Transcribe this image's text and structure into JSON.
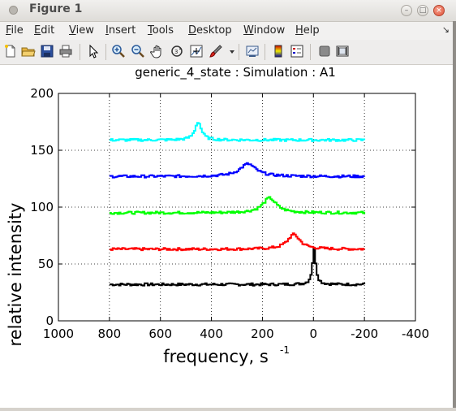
{
  "window": {
    "title": "Figure 1",
    "controls": [
      "minimize",
      "maximize",
      "close"
    ]
  },
  "menu": [
    {
      "label": "File",
      "mnemonic": "F",
      "rest": "ile"
    },
    {
      "label": "Edit",
      "mnemonic": "E",
      "rest": "dit"
    },
    {
      "label": "View",
      "mnemonic": "V",
      "rest": "iew"
    },
    {
      "label": "Insert",
      "mnemonic": "I",
      "rest": "nsert"
    },
    {
      "label": "Tools",
      "mnemonic": "T",
      "rest": "ools"
    },
    {
      "label": "Desktop",
      "mnemonic": "D",
      "rest": "esktop"
    },
    {
      "label": "Window",
      "mnemonic": "W",
      "rest": "indow"
    },
    {
      "label": "Help",
      "mnemonic": "H",
      "rest": "elp"
    }
  ],
  "toolbar": {
    "buttons": [
      "new-figure-icon",
      "open-file-icon",
      "save-icon",
      "print-icon",
      "pointer-icon",
      "zoom-in-icon",
      "zoom-out-icon",
      "pan-icon",
      "rotate-icon",
      "data-cursor-icon",
      "brush-icon",
      "dropdown-arrow-icon",
      "link-plot-icon",
      "colorbar-icon",
      "legend-icon",
      "hide-plot-tools-icon",
      "show-plot-tools-icon"
    ]
  },
  "chart_data": {
    "type": "line",
    "title": "generic_4_state : Simulation : A1",
    "xlabel": "frequency, s",
    "xlabel_superscript": "-1",
    "ylabel": "relative intensity",
    "xlim": [
      1000,
      -400
    ],
    "x_reversed": true,
    "ylim": [
      0,
      200
    ],
    "xticks": [
      1000,
      800,
      600,
      400,
      200,
      0,
      -200,
      -400
    ],
    "xtick_labels": [
      "1000",
      "800",
      "600",
      "400",
      "200",
      "0",
      "-200",
      "-400"
    ],
    "yticks": [
      0,
      50,
      100,
      150,
      200
    ],
    "ytick_labels": [
      "0",
      "50",
      "100",
      "150",
      "200"
    ],
    "grid": true,
    "grid_style": "dotted",
    "legend": "none",
    "series": [
      {
        "color": "#000000",
        "baseline": 32,
        "peak_x": 0,
        "peak_height": 31,
        "peak_width": 8,
        "x": [
          800,
          600,
          400,
          200,
          100,
          40,
          10,
          0,
          -10,
          -40,
          -100,
          -200
        ],
        "values": [
          32,
          31,
          32,
          33,
          33,
          35,
          50,
          63,
          48,
          34,
          33,
          32
        ]
      },
      {
        "color": "#ff0000",
        "baseline": 63,
        "peak_x": 80,
        "peak_height": 13,
        "peak_width": 30,
        "x": [
          800,
          600,
          400,
          200,
          150,
          110,
          80,
          50,
          20,
          0,
          -100,
          -200
        ],
        "values": [
          64,
          63,
          63,
          64,
          66,
          71,
          76,
          71,
          66,
          64,
          64,
          64
        ]
      },
      {
        "color": "#00ff00",
        "baseline": 95,
        "peak_x": 175,
        "peak_height": 13,
        "peak_width": 32,
        "x": [
          800,
          600,
          400,
          300,
          240,
          200,
          175,
          140,
          100,
          50,
          -100,
          -200
        ],
        "values": [
          94,
          95,
          95,
          96,
          99,
          104,
          108,
          103,
          98,
          96,
          95,
          95
        ]
      },
      {
        "color": "#0000ff",
        "baseline": 127,
        "peak_x": 260,
        "peak_height": 11,
        "peak_width": 38,
        "x": [
          800,
          600,
          450,
          380,
          320,
          280,
          260,
          220,
          180,
          100,
          -100,
          -200
        ],
        "values": [
          127,
          127,
          127,
          128,
          130,
          134,
          138,
          134,
          130,
          128,
          127,
          127
        ]
      },
      {
        "color": "#00ffff",
        "baseline": 159,
        "peak_x": 455,
        "peak_height": 16,
        "peak_width": 15,
        "x": [
          800,
          600,
          520,
          480,
          465,
          455,
          445,
          420,
          380,
          200,
          0,
          -200
        ],
        "values": [
          159,
          160,
          161,
          164,
          170,
          176,
          170,
          163,
          160,
          159,
          159,
          159
        ]
      }
    ]
  },
  "colors": {
    "titlebar": "#dedcd8",
    "menubar": "#f2f1f0",
    "figure_bg": "#ffffff"
  }
}
